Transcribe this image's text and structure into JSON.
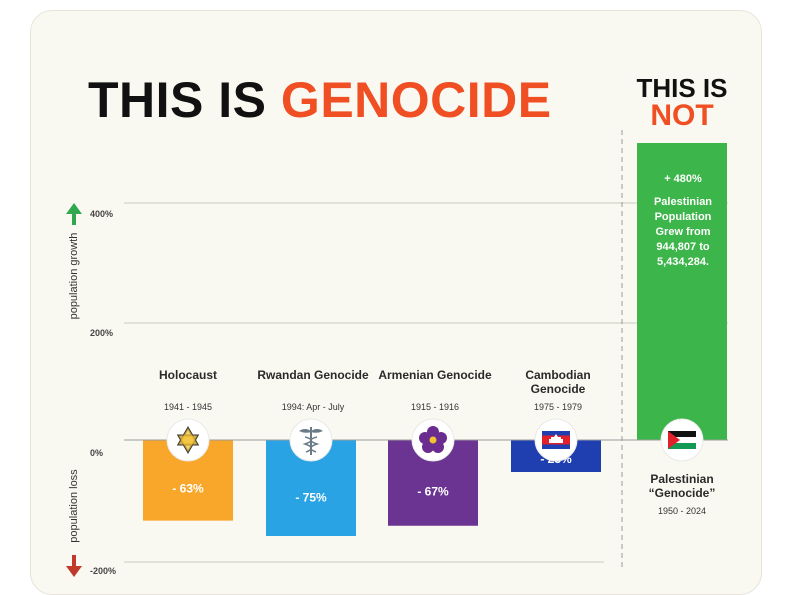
{
  "title": {
    "part1": "THIS IS ",
    "part2": "GENOCIDE"
  },
  "not_title": {
    "line1": "THIS IS",
    "line2": "NOT"
  },
  "axis": {
    "growth_label": "population growth",
    "loss_label": "population loss",
    "ticks": [
      "400%",
      "200%",
      "0%",
      "-200%"
    ]
  },
  "colors": {
    "title_red": "#f04e23",
    "growth_arrow": "#2fa84f",
    "loss_arrow": "#c0392b"
  },
  "chart_data": {
    "type": "bar",
    "categories": [
      "Holocaust",
      "Rwandan Genocide",
      "Armenian Genocide",
      "Cambodian Genocide",
      "Palestinian “Genocide”"
    ],
    "years": [
      "1941 - 1945",
      "1994: Apr - July",
      "1915 - 1916",
      "1975 - 1979",
      "1950 - 2024"
    ],
    "values": [
      -63,
      -75,
      -67,
      -25,
      480
    ],
    "value_labels": [
      "- 63%",
      "- 75%",
      "- 67%",
      "- 25%",
      "+ 480%"
    ],
    "bar_colors": [
      "#f9a72b",
      "#29a3e3",
      "#6b3493",
      "#1f3fb0",
      "#3cb54a"
    ],
    "icons": [
      "star-of-david-icon",
      "caduceus-icon",
      "forget-me-not-icon",
      "cambodia-flag-icon",
      "palestine-flag-icon"
    ],
    "ylim": [
      -200,
      400
    ],
    "grid": true,
    "annotation": [
      "Palestinian",
      "Population",
      "Grew from",
      "944,807 to",
      "5,434,284."
    ]
  }
}
